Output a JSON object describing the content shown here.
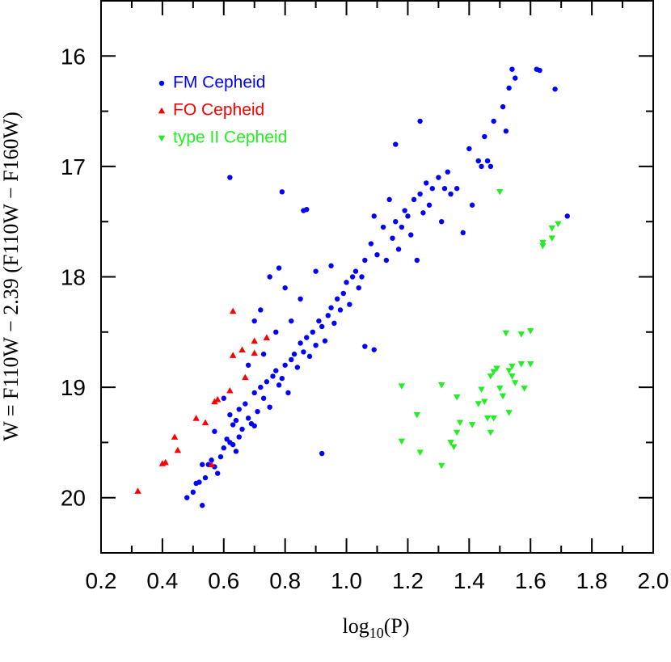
{
  "chart_data": {
    "type": "scatter",
    "xlabel": [
      "log",
      "10",
      "(P)"
    ],
    "ylabel": "W = F110W − 2.39 (F110W − F160W)",
    "xlim": [
      0.2,
      2.0
    ],
    "ylim": [
      20.5,
      15.5
    ],
    "xticks": [
      0.2,
      0.4,
      0.6,
      0.8,
      {
        "value": 1,
        "label": "1.0"
      },
      1.2,
      1.4,
      1.6,
      1.8,
      {
        "value": 2,
        "label": "2.0"
      }
    ],
    "xminor": [
      0.3,
      0.5,
      0.7,
      0.9,
      1.1,
      1.3,
      1.5,
      1.7,
      1.9
    ],
    "yticks": [
      16,
      17,
      18,
      19,
      20
    ],
    "yminor": [
      16.5,
      17.5,
      18.5,
      19.5
    ],
    "legend": "upper left",
    "series": [
      {
        "name": "FM Cepheid",
        "color": "#0000ff",
        "marker": "circle",
        "x": [
          0.48,
          0.5,
          0.51,
          0.52,
          0.53,
          0.54,
          0.55,
          0.53,
          0.56,
          0.57,
          0.58,
          0.59,
          0.6,
          0.61,
          0.62,
          0.63,
          0.64,
          0.65,
          0.66,
          0.64,
          0.62,
          0.63,
          0.65,
          0.67,
          0.68,
          0.69,
          0.7,
          0.71,
          0.7,
          0.72,
          0.73,
          0.74,
          0.75,
          0.76,
          0.77,
          0.78,
          0.79,
          0.8,
          0.81,
          0.82,
          0.83,
          0.84,
          0.85,
          0.86,
          0.87,
          0.88,
          0.89,
          0.9,
          0.91,
          0.92,
          0.93,
          0.94,
          0.95,
          0.96,
          0.97,
          0.98,
          0.99,
          1.0,
          1.01,
          1.02,
          1.03,
          1.04,
          1.05,
          1.06,
          1.08,
          1.09,
          1.1,
          1.12,
          1.13,
          1.14,
          1.15,
          1.16,
          1.17,
          1.18,
          1.19,
          1.2,
          1.21,
          1.22,
          1.23,
          1.24,
          1.25,
          1.26,
          1.27,
          1.28,
          1.3,
          1.31,
          1.32,
          1.33,
          1.34,
          1.36,
          1.38,
          1.4,
          1.41,
          1.43,
          1.44,
          1.45,
          1.46,
          1.47,
          1.48,
          1.51,
          1.52,
          1.53,
          1.54,
          1.55,
          1.62,
          1.63,
          1.68,
          1.72,
          0.62,
          0.79,
          0.86,
          0.87,
          1.16,
          1.24,
          0.78,
          0.92,
          1.09,
          1.06,
          0.72,
          0.75,
          0.8,
          0.82,
          0.85,
          0.7,
          0.9,
          0.95,
          0.6,
          0.68,
          0.57,
          0.73,
          0.77
        ],
        "y": [
          20.0,
          19.95,
          19.87,
          19.86,
          20.07,
          19.82,
          19.7,
          19.7,
          19.66,
          19.72,
          19.78,
          19.63,
          19.55,
          19.47,
          19.5,
          19.52,
          19.58,
          19.45,
          19.38,
          19.3,
          19.25,
          19.34,
          19.2,
          19.15,
          19.28,
          19.33,
          19.35,
          19.22,
          19.05,
          19.0,
          19.1,
          18.95,
          19.18,
          18.9,
          18.85,
          18.98,
          18.92,
          18.8,
          19.05,
          18.75,
          18.7,
          18.82,
          18.6,
          18.68,
          18.55,
          18.72,
          18.5,
          18.62,
          18.4,
          18.45,
          18.58,
          18.35,
          18.28,
          18.42,
          18.2,
          18.3,
          18.15,
          18.05,
          18.25,
          18.0,
          17.95,
          18.1,
          18.0,
          17.85,
          17.7,
          17.45,
          17.8,
          17.55,
          17.85,
          17.3,
          17.65,
          17.5,
          17.75,
          17.55,
          17.4,
          17.45,
          17.62,
          17.3,
          17.85,
          17.25,
          17.42,
          17.15,
          17.35,
          17.2,
          17.1,
          17.5,
          17.2,
          17.05,
          17.25,
          17.2,
          17.6,
          16.84,
          17.35,
          16.95,
          17.0,
          16.73,
          16.95,
          17.0,
          16.59,
          16.46,
          16.68,
          16.29,
          16.12,
          16.2,
          16.12,
          16.13,
          16.3,
          17.45,
          17.1,
          17.23,
          17.4,
          17.39,
          16.8,
          16.59,
          17.92,
          19.6,
          18.66,
          18.63,
          18.3,
          18.0,
          18.1,
          18.4,
          18.2,
          18.4,
          17.95,
          17.9,
          19.1,
          18.8,
          19.4,
          18.7,
          18.5
        ]
      },
      {
        "name": "FO Cepheid",
        "color": "#ff0000",
        "marker": "triangle-up",
        "x": [
          0.32,
          0.4,
          0.41,
          0.44,
          0.45,
          0.51,
          0.54,
          0.57,
          0.58,
          0.62,
          0.67,
          0.63,
          0.66,
          0.7,
          0.7,
          0.74,
          0.63,
          0.56
        ],
        "y": [
          19.94,
          19.69,
          19.68,
          19.45,
          19.57,
          19.28,
          19.32,
          19.13,
          19.11,
          19.03,
          18.91,
          18.71,
          18.66,
          18.69,
          18.58,
          18.55,
          18.31,
          19.7
        ]
      },
      {
        "name": "type II Cepheid",
        "color": "#22ee22",
        "marker": "triangle-down",
        "x": [
          1.5,
          1.69,
          1.67,
          1.67,
          1.64,
          1.64,
          1.18,
          1.18,
          1.23,
          1.24,
          1.31,
          1.31,
          1.34,
          1.36,
          1.37,
          1.35,
          1.36,
          1.41,
          1.43,
          1.44,
          1.45,
          1.46,
          1.47,
          1.47,
          1.48,
          1.49,
          1.5,
          1.51,
          1.52,
          1.53,
          1.54,
          1.54,
          1.55,
          1.57,
          1.57,
          1.58,
          1.6,
          1.6,
          1.48,
          1.53
        ],
        "y": [
          17.23,
          17.52,
          17.56,
          17.65,
          17.69,
          17.72,
          18.99,
          19.49,
          19.25,
          19.59,
          18.98,
          19.71,
          19.5,
          19.41,
          19.32,
          19.54,
          19.09,
          19.34,
          19.15,
          19.02,
          19.13,
          19.28,
          19.41,
          18.9,
          18.86,
          18.83,
          19.01,
          19.08,
          18.51,
          18.85,
          18.9,
          18.81,
          18.96,
          18.52,
          18.79,
          19.01,
          18.49,
          18.79,
          19.28,
          19.23
        ]
      }
    ]
  }
}
